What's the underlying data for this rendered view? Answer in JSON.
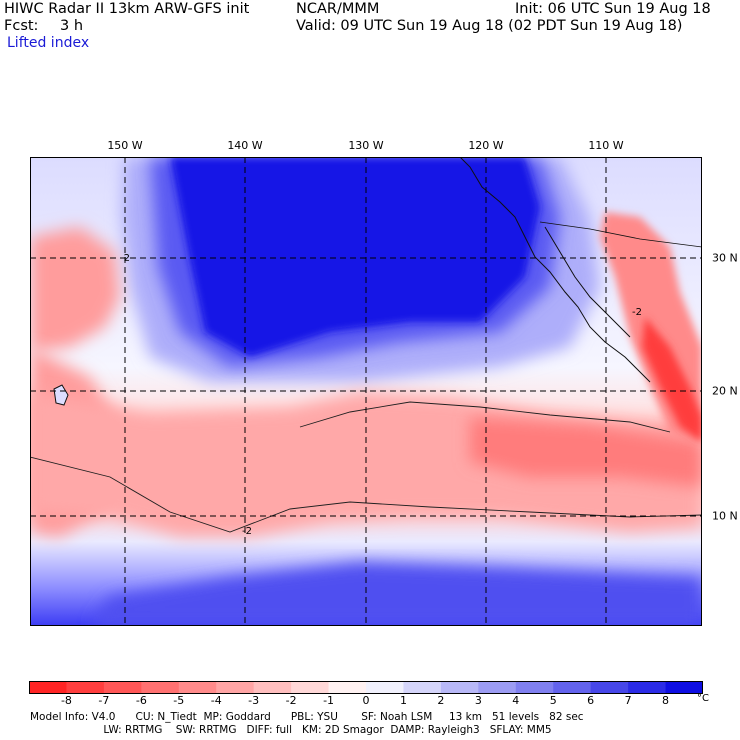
{
  "header": {
    "model": "HIWC Radar II 13km ARW-GFS init",
    "org": "NCAR/MMM",
    "init": "Init: 06 UTC Sun 19 Aug 18",
    "fcst_label": "Fcst:",
    "fcst_value": "3 h",
    "valid": "Valid: 09 UTC Sun 19 Aug 18 (02 PDT Sun 19 Aug 18)",
    "field": "Lifted index"
  },
  "map": {
    "lon_labels": [
      "150 W",
      "140 W",
      "130 W",
      "120 W",
      "110 W"
    ],
    "lat_labels": [
      "30 N",
      "20 N",
      "10 N"
    ],
    "contour_labels": [
      "-2",
      "-2",
      "-2"
    ],
    "colors": {
      "negative_strong": "#ff2020",
      "negative_light": "#ffd6d6",
      "neutral": "#ffffff",
      "positive_light": "#d6d6ff",
      "positive_strong": "#0000e0"
    }
  },
  "colorbar": {
    "levels": [
      -9,
      -8,
      -7,
      -6,
      -5,
      -4,
      -3,
      -2,
      -1,
      0,
      1,
      2,
      3,
      4,
      5,
      6,
      7,
      8,
      9
    ],
    "tick_labels": [
      "-8",
      "-7",
      "-6",
      "-5",
      "-4",
      "-3",
      "-2",
      "-1",
      "0",
      "1",
      "2",
      "3",
      "4",
      "5",
      "6",
      "7",
      "8"
    ],
    "unit": "°C"
  },
  "footer": {
    "line1": "Model Info: V4.0      CU: N_Tiedt  MP: Goddard      PBL: YSU       SF: Noah LSM     13 km   51 levels   82 sec",
    "line2": "                      LW: RRTMG    SW: RRTMG   DIFF: full   KM: 2D Smagor  DAMP: Rayleigh3   SFLAY: MM5"
  }
}
